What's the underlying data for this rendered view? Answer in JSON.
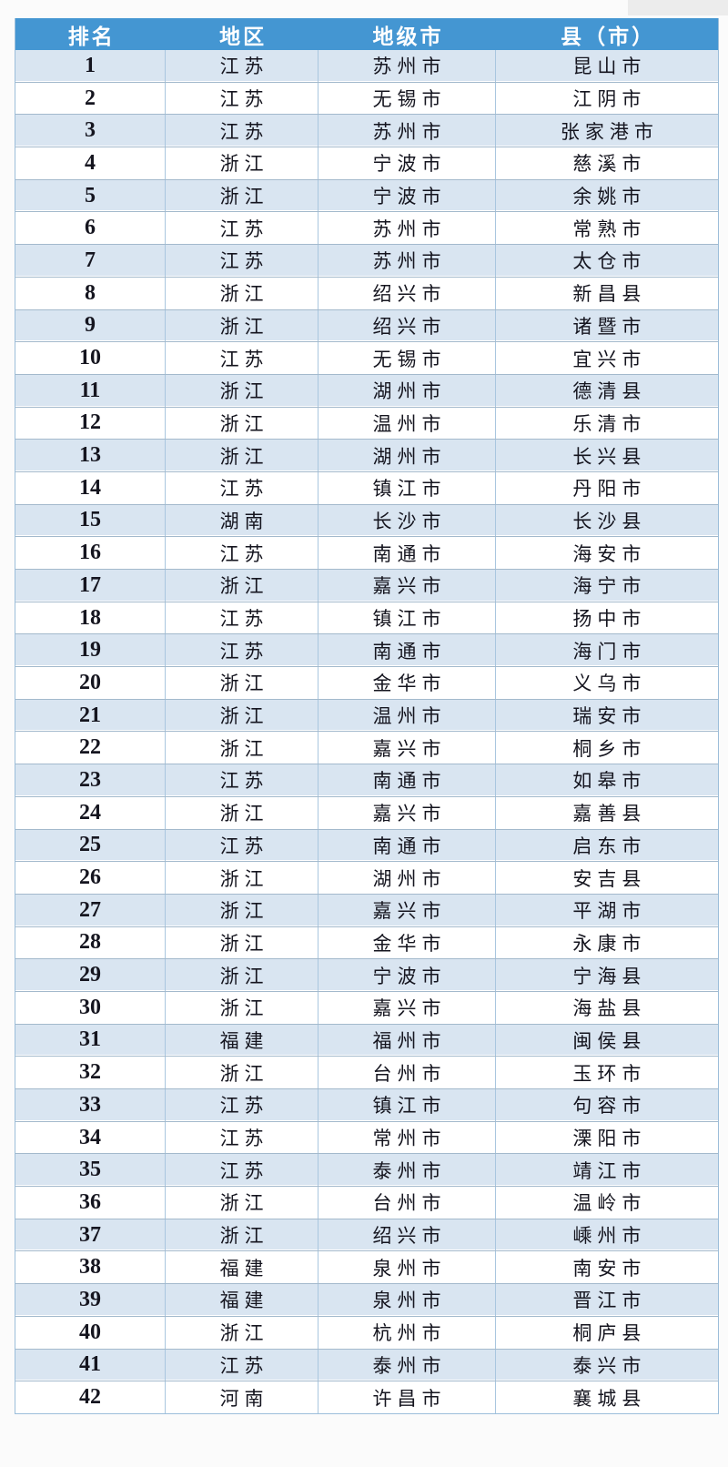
{
  "page": {
    "background": "#fbfbfb",
    "corner_shade_color": "#ececec"
  },
  "table": {
    "colors": {
      "header_bg": "#4496d2",
      "header_text": "#ffffff",
      "row_alt_bg": "#d9e5f1",
      "row_bg": "#ffffff",
      "grid_line": "#a9c6df",
      "row_separator": "#a3b9cc",
      "outer_border": "#9cbeda",
      "body_text": "#15151f"
    },
    "columns": [
      "排名",
      "地区",
      "地级市",
      "县（市）"
    ],
    "rows": [
      {
        "rank": "1",
        "province": "江苏",
        "city": "苏州市",
        "county": "昆山市"
      },
      {
        "rank": "2",
        "province": "江苏",
        "city": "无锡市",
        "county": "江阴市"
      },
      {
        "rank": "3",
        "province": "江苏",
        "city": "苏州市",
        "county": "张家港市"
      },
      {
        "rank": "4",
        "province": "浙江",
        "city": "宁波市",
        "county": "慈溪市"
      },
      {
        "rank": "5",
        "province": "浙江",
        "city": "宁波市",
        "county": "余姚市"
      },
      {
        "rank": "6",
        "province": "江苏",
        "city": "苏州市",
        "county": "常熟市"
      },
      {
        "rank": "7",
        "province": "江苏",
        "city": "苏州市",
        "county": "太仓市"
      },
      {
        "rank": "8",
        "province": "浙江",
        "city": "绍兴市",
        "county": "新昌县"
      },
      {
        "rank": "9",
        "province": "浙江",
        "city": "绍兴市",
        "county": "诸暨市"
      },
      {
        "rank": "10",
        "province": "江苏",
        "city": "无锡市",
        "county": "宜兴市"
      },
      {
        "rank": "11",
        "province": "浙江",
        "city": "湖州市",
        "county": "德清县"
      },
      {
        "rank": "12",
        "province": "浙江",
        "city": "温州市",
        "county": "乐清市"
      },
      {
        "rank": "13",
        "province": "浙江",
        "city": "湖州市",
        "county": "长兴县"
      },
      {
        "rank": "14",
        "province": "江苏",
        "city": "镇江市",
        "county": "丹阳市"
      },
      {
        "rank": "15",
        "province": "湖南",
        "city": "长沙市",
        "county": "长沙县"
      },
      {
        "rank": "16",
        "province": "江苏",
        "city": "南通市",
        "county": "海安市"
      },
      {
        "rank": "17",
        "province": "浙江",
        "city": "嘉兴市",
        "county": "海宁市"
      },
      {
        "rank": "18",
        "province": "江苏",
        "city": "镇江市",
        "county": "扬中市"
      },
      {
        "rank": "19",
        "province": "江苏",
        "city": "南通市",
        "county": "海门市"
      },
      {
        "rank": "20",
        "province": "浙江",
        "city": "金华市",
        "county": "义乌市"
      },
      {
        "rank": "21",
        "province": "浙江",
        "city": "温州市",
        "county": "瑞安市"
      },
      {
        "rank": "22",
        "province": "浙江",
        "city": "嘉兴市",
        "county": "桐乡市"
      },
      {
        "rank": "23",
        "province": "江苏",
        "city": "南通市",
        "county": "如皋市"
      },
      {
        "rank": "24",
        "province": "浙江",
        "city": "嘉兴市",
        "county": "嘉善县"
      },
      {
        "rank": "25",
        "province": "江苏",
        "city": "南通市",
        "county": "启东市"
      },
      {
        "rank": "26",
        "province": "浙江",
        "city": "湖州市",
        "county": "安吉县"
      },
      {
        "rank": "27",
        "province": "浙江",
        "city": "嘉兴市",
        "county": "平湖市"
      },
      {
        "rank": "28",
        "province": "浙江",
        "city": "金华市",
        "county": "永康市"
      },
      {
        "rank": "29",
        "province": "浙江",
        "city": "宁波市",
        "county": "宁海县"
      },
      {
        "rank": "30",
        "province": "浙江",
        "city": "嘉兴市",
        "county": "海盐县"
      },
      {
        "rank": "31",
        "province": "福建",
        "city": "福州市",
        "county": "闽侯县"
      },
      {
        "rank": "32",
        "province": "浙江",
        "city": "台州市",
        "county": "玉环市"
      },
      {
        "rank": "33",
        "province": "江苏",
        "city": "镇江市",
        "county": "句容市"
      },
      {
        "rank": "34",
        "province": "江苏",
        "city": "常州市",
        "county": "溧阳市"
      },
      {
        "rank": "35",
        "province": "江苏",
        "city": "泰州市",
        "county": "靖江市"
      },
      {
        "rank": "36",
        "province": "浙江",
        "city": "台州市",
        "county": "温岭市"
      },
      {
        "rank": "37",
        "province": "浙江",
        "city": "绍兴市",
        "county": "嵊州市"
      },
      {
        "rank": "38",
        "province": "福建",
        "city": "泉州市",
        "county": "南安市"
      },
      {
        "rank": "39",
        "province": "福建",
        "city": "泉州市",
        "county": "晋江市"
      },
      {
        "rank": "40",
        "province": "浙江",
        "city": "杭州市",
        "county": "桐庐县"
      },
      {
        "rank": "41",
        "province": "江苏",
        "city": "泰州市",
        "county": "泰兴市"
      },
      {
        "rank": "42",
        "province": "河南",
        "city": "许昌市",
        "county": "襄城县"
      }
    ]
  }
}
